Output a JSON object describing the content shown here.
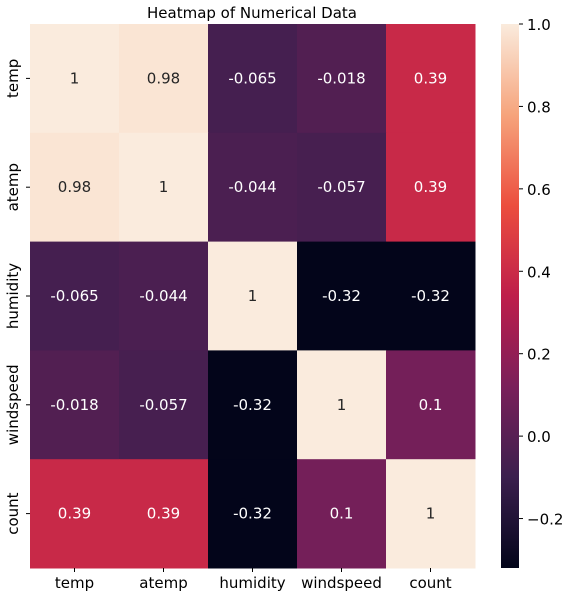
{
  "chart_data": {
    "type": "heatmap",
    "title": "Heatmap of Numerical Data",
    "x_labels": [
      "temp",
      "atemp",
      "humidity",
      "windspeed",
      "count"
    ],
    "y_labels": [
      "temp",
      "atemp",
      "humidity",
      "windspeed",
      "count"
    ],
    "values": [
      [
        1,
        0.98,
        -0.065,
        -0.018,
        0.39
      ],
      [
        0.98,
        1,
        -0.044,
        -0.057,
        0.39
      ],
      [
        -0.065,
        -0.044,
        1,
        -0.32,
        -0.32
      ],
      [
        -0.018,
        -0.057,
        -0.32,
        1,
        0.1
      ],
      [
        0.39,
        0.39,
        -0.32,
        0.1,
        1
      ]
    ],
    "cell_labels": [
      [
        "1",
        "0.98",
        "-0.065",
        "-0.018",
        "0.39"
      ],
      [
        "0.98",
        "1",
        "-0.044",
        "-0.057",
        "0.39"
      ],
      [
        "-0.065",
        "-0.044",
        "1",
        "-0.32",
        "-0.32"
      ],
      [
        "-0.018",
        "-0.057",
        "-0.32",
        "1",
        "0.1"
      ],
      [
        "0.39",
        "0.39",
        "-0.32",
        "0.1",
        "1"
      ]
    ],
    "colorbar": {
      "range": [
        -0.32,
        1.0
      ],
      "ticks": [
        -0.2,
        0.0,
        0.2,
        0.4,
        0.6,
        0.8,
        1.0
      ],
      "tick_labels": [
        "−0.2",
        "0.0",
        "0.2",
        "0.4",
        "0.6",
        "0.8",
        "1.0"
      ],
      "colormap": "rocket",
      "colormap_stops": [
        "#03051a",
        "#3b1f4e",
        "#7a1f5a",
        "#be1e4b",
        "#ec4e3e",
        "#f6a47c",
        "#faebdd"
      ]
    }
  }
}
